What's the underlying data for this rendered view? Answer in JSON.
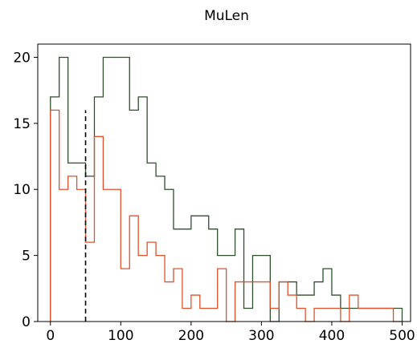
{
  "chart_data": {
    "type": "histogram-step",
    "title": "MuLen",
    "xlabel": "",
    "ylabel": "",
    "xlim": [
      -18,
      512
    ],
    "ylim": [
      0,
      21
    ],
    "x_ticks": [
      0,
      100,
      200,
      300,
      400,
      500
    ],
    "y_ticks": [
      0,
      5,
      10,
      15,
      20
    ],
    "grid": false,
    "legend": "none",
    "bin_edges": [
      0,
      12.5,
      25,
      37.5,
      50,
      62.5,
      75,
      87.5,
      100,
      112.5,
      125,
      137.5,
      150,
      162.5,
      175,
      187.5,
      200,
      212.5,
      225,
      237.5,
      250,
      262.5,
      275,
      287.5,
      300,
      312.5,
      325,
      337.5,
      350,
      362.5,
      375,
      387.5,
      400,
      412.5,
      425,
      437.5,
      450,
      462.5,
      475,
      487.5,
      500
    ],
    "series": [
      {
        "color": "#2f4f2f",
        "values": [
          17,
          20,
          12,
          12,
          11,
          17,
          20,
          20,
          20,
          16,
          17,
          12,
          11,
          10,
          7,
          7,
          8,
          8,
          7,
          5,
          5,
          7,
          1,
          5,
          5,
          0,
          3,
          3,
          2,
          2,
          3,
          4,
          2,
          1,
          1,
          1,
          1,
          1,
          1,
          1
        ]
      },
      {
        "color": "#e0502b",
        "values": [
          16,
          10,
          11,
          10,
          6,
          14,
          10,
          10,
          4,
          8,
          5,
          6,
          5,
          3,
          4,
          1,
          2,
          1,
          1,
          4,
          0,
          3,
          3,
          3,
          3,
          1,
          3,
          2,
          1,
          0,
          1,
          1,
          1,
          0,
          2,
          1,
          1,
          1,
          1,
          0
        ]
      }
    ],
    "reference_line": {
      "x": 50,
      "y_top": 16,
      "style": "dashed",
      "color": "#000000"
    }
  }
}
